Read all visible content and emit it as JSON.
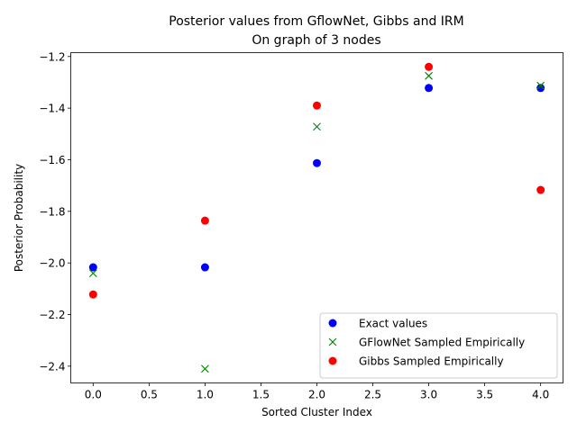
{
  "chart_data": {
    "type": "scatter",
    "title": "Posterior values from GflowNet, Gibbs and IRM",
    "subtitle": "On graph of 3 nodes",
    "xlabel": "Sorted Cluster Index",
    "ylabel": "Posterior Probability",
    "xlim": [
      -0.2,
      4.2
    ],
    "ylim": [
      -2.465,
      -1.185
    ],
    "x_ticks": [
      0.0,
      0.5,
      1.0,
      1.5,
      2.0,
      2.5,
      3.0,
      3.5,
      4.0
    ],
    "x_tick_labels": [
      "0.0",
      "0.5",
      "1.0",
      "1.5",
      "2.0",
      "2.5",
      "3.0",
      "3.5",
      "4.0"
    ],
    "y_ticks": [
      -2.4,
      -2.2,
      -2.0,
      -1.8,
      -1.6,
      -1.4,
      -1.2
    ],
    "y_tick_labels": [
      "−2.4",
      "−2.2",
      "−2.0",
      "−1.8",
      "−1.6",
      "−1.4",
      "−1.2"
    ],
    "grid": false,
    "legend_position": "lower-right",
    "series": [
      {
        "name": "Exact values",
        "marker": "circle",
        "color": "#0000ff",
        "x": [
          0,
          1,
          2,
          3,
          4
        ],
        "y": [
          -2.017,
          -2.017,
          -1.613,
          -1.322,
          -1.322
        ]
      },
      {
        "name": "GFlowNet Sampled Empirically",
        "marker": "x",
        "color": "#008000",
        "x": [
          0,
          1,
          2,
          3,
          4
        ],
        "y": [
          -2.04,
          -2.41,
          -1.472,
          -1.275,
          -1.313
        ]
      },
      {
        "name": "Gibbs Sampled Empirically",
        "marker": "circle",
        "color": "#ff0000",
        "x": [
          0,
          1,
          2,
          3,
          4
        ],
        "y": [
          -2.122,
          -1.836,
          -1.39,
          -1.24,
          -1.717
        ]
      }
    ]
  }
}
